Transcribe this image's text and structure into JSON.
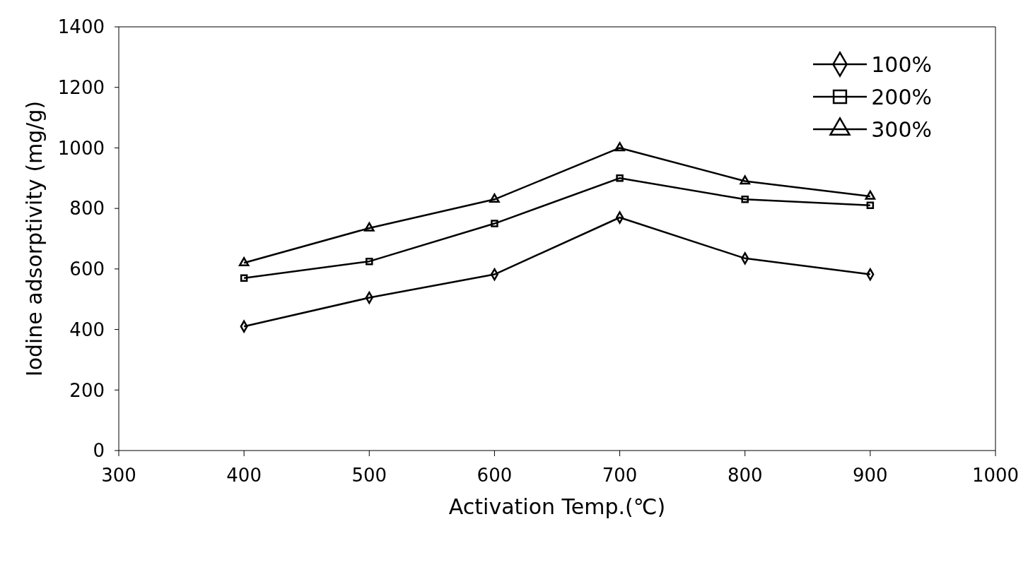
{
  "chart_data": {
    "type": "line",
    "xlabel": "Activation Temp.(℃)",
    "ylabel": "Iodine adsorptivity (mg/g)",
    "x": [
      400,
      500,
      600,
      700,
      800,
      900
    ],
    "xlim": [
      300,
      1000
    ],
    "xticks": [
      300,
      400,
      500,
      600,
      700,
      800,
      900,
      1000
    ],
    "ylim": [
      0,
      1400
    ],
    "yticks": [
      0,
      200,
      400,
      600,
      800,
      1000,
      1200,
      1400
    ],
    "grid": false,
    "legend": "top right",
    "line_style": "solid",
    "series": [
      {
        "name": "100%",
        "color": "#000000",
        "marker": "diamond",
        "values": [
          410,
          505,
          582,
          770,
          635,
          582
        ]
      },
      {
        "name": "200%",
        "color": "#000000",
        "marker": "square",
        "values": [
          570,
          625,
          750,
          900,
          830,
          810
        ]
      },
      {
        "name": "300%",
        "color": "#000000",
        "marker": "triangle",
        "values": [
          620,
          735,
          830,
          1000,
          890,
          840
        ]
      }
    ]
  }
}
